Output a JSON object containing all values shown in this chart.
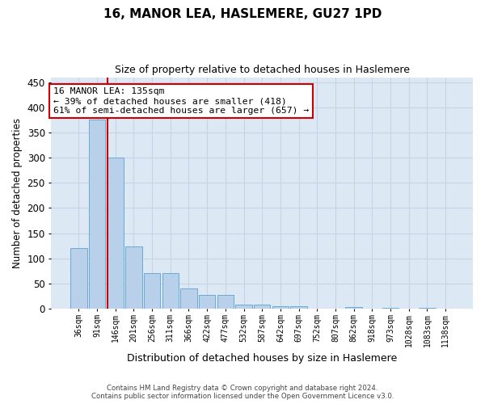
{
  "title": "16, MANOR LEA, HASLEMERE, GU27 1PD",
  "subtitle": "Size of property relative to detached houses in Haslemere",
  "xlabel": "Distribution of detached houses by size in Haslemere",
  "ylabel": "Number of detached properties",
  "bin_labels": [
    "36sqm",
    "91sqm",
    "146sqm",
    "201sqm",
    "256sqm",
    "311sqm",
    "366sqm",
    "422sqm",
    "477sqm",
    "532sqm",
    "587sqm",
    "642sqm",
    "697sqm",
    "752sqm",
    "807sqm",
    "862sqm",
    "918sqm",
    "973sqm",
    "1028sqm",
    "1083sqm",
    "1138sqm"
  ],
  "bar_values": [
    120,
    375,
    300,
    123,
    70,
    70,
    40,
    28,
    28,
    8,
    8,
    5,
    5,
    0,
    0,
    3,
    0,
    1,
    0,
    1,
    0
  ],
  "bar_color": "#b8d0ea",
  "bar_edge_color": "#6aaad4",
  "grid_color": "#c5d5e5",
  "bg_color": "#dce8f4",
  "vline_color": "#cc0000",
  "annotation_text": "16 MANOR LEA: 135sqm\n← 39% of detached houses are smaller (418)\n61% of semi-detached houses are larger (657) →",
  "annotation_box_color": "#cc0000",
  "footer_line1": "Contains HM Land Registry data © Crown copyright and database right 2024.",
  "footer_line2": "Contains public sector information licensed under the Open Government Licence v3.0.",
  "ylim": [
    0,
    460
  ],
  "yticks": [
    0,
    50,
    100,
    150,
    200,
    250,
    300,
    350,
    400,
    450
  ]
}
